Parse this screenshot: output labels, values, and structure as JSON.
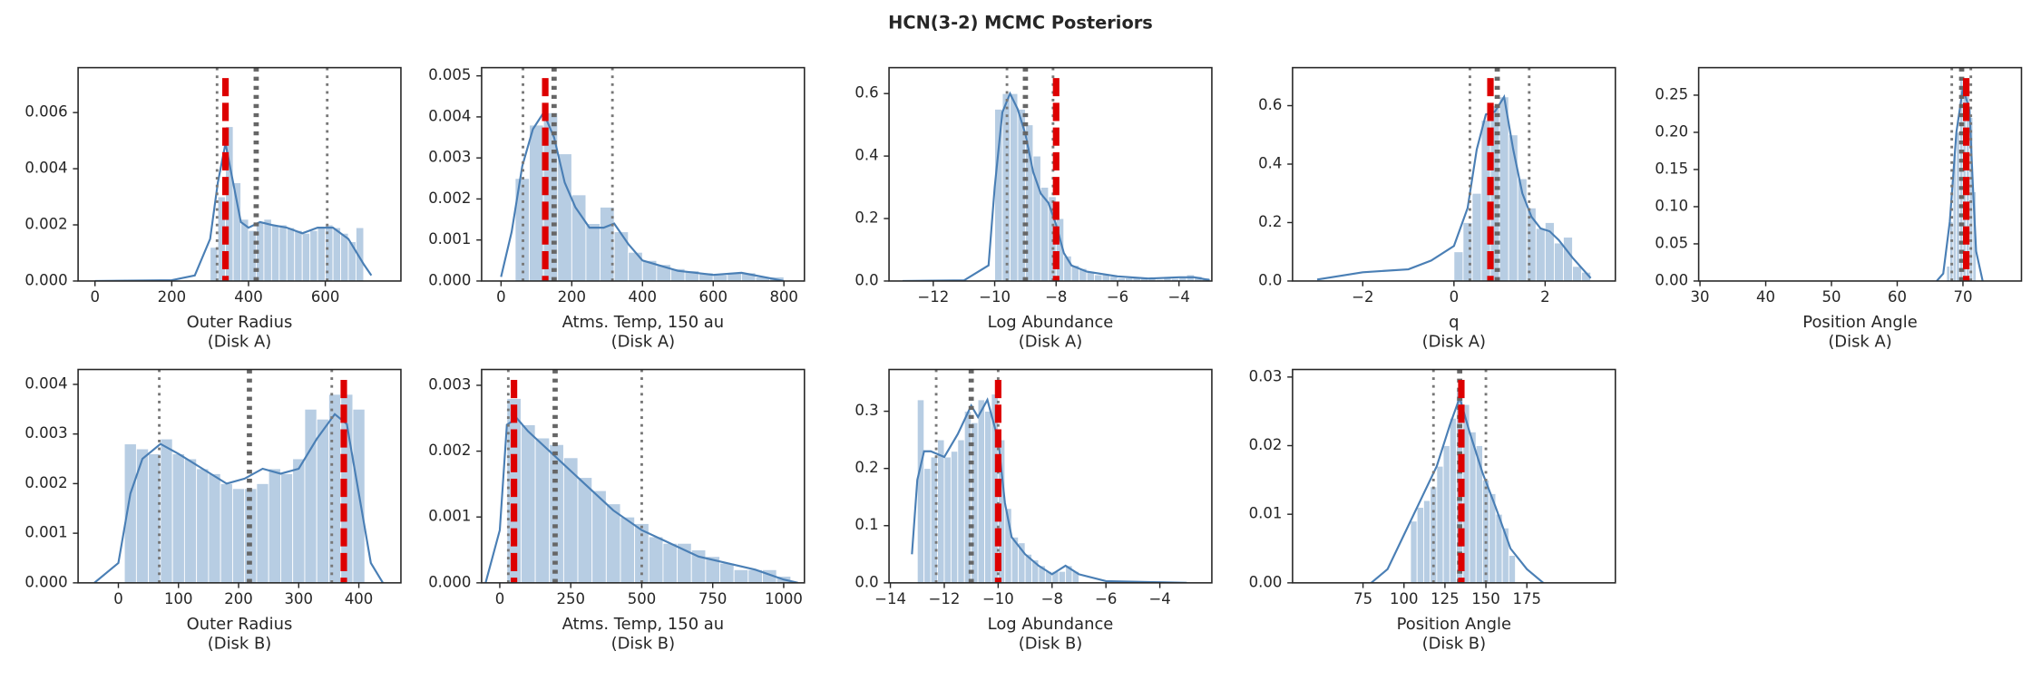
{
  "title": "HCN(3-2) MCMC Posteriors",
  "chart_data": [
    {
      "type": "histogram",
      "xlabel": [
        "Outer Radius",
        "(Disk A)"
      ],
      "xlim": [
        -44,
        797
      ],
      "ylim": [
        0,
        0.0076
      ],
      "xticks": [
        0,
        200,
        400,
        600
      ],
      "yticks": [
        {
          "value": 0,
          "label": "0.000"
        },
        {
          "value": 0.002,
          "label": "0.002"
        },
        {
          "value": 0.004,
          "label": "0.004"
        },
        {
          "value": 0.006,
          "label": "0.006"
        }
      ],
      "bins": [
        300,
        320,
        340,
        360,
        380,
        400,
        420,
        440,
        460,
        480,
        500,
        520,
        540,
        560,
        580,
        600,
        620,
        640,
        660,
        680,
        700
      ],
      "counts": [
        0.0012,
        0.003,
        0.0055,
        0.0035,
        0.0022,
        0.0018,
        0.0021,
        0.0022,
        0.002,
        0.002,
        0.0019,
        0.0018,
        0.0017,
        0.0018,
        0.0019,
        0.002,
        0.0019,
        0.0017,
        0.0014,
        0.0019
      ],
      "kde": {
        "x": [
          0,
          200,
          260,
          300,
          320,
          340,
          360,
          380,
          400,
          430,
          460,
          500,
          540,
          580,
          620,
          660,
          700,
          720
        ],
        "y": [
          0,
          3e-05,
          0.0002,
          0.0015,
          0.0035,
          0.0049,
          0.0035,
          0.0021,
          0.0019,
          0.0021,
          0.002,
          0.0019,
          0.0017,
          0.0019,
          0.0019,
          0.0015,
          0.0006,
          0.0002
        ]
      },
      "markers": {
        "percentiles": [
          318,
          605
        ],
        "median": 420,
        "best": 340
      }
    },
    {
      "type": "histogram",
      "xlabel": [
        "Atms. Temp, 150 au",
        "(Disk A)"
      ],
      "xlim": [
        -55,
        858
      ],
      "ylim": [
        0,
        0.0052
      ],
      "xticks": [
        0,
        200,
        400,
        600,
        800
      ],
      "yticks": [
        {
          "value": 0,
          "label": "0.000"
        },
        {
          "value": 0.001,
          "label": "0.001"
        },
        {
          "value": 0.002,
          "label": "0.002"
        },
        {
          "value": 0.003,
          "label": "0.003"
        },
        {
          "value": 0.004,
          "label": "0.004"
        },
        {
          "value": 0.005,
          "label": "0.005"
        }
      ],
      "bins": [
        40,
        80,
        120,
        160,
        200,
        240,
        280,
        320,
        360,
        400,
        440,
        480,
        520,
        560,
        600,
        640,
        680,
        720,
        760,
        800
      ],
      "counts": [
        0.0025,
        0.0038,
        0.0041,
        0.0031,
        0.0021,
        0.0014,
        0.0018,
        0.0012,
        0.0007,
        0.0005,
        0.0004,
        0.0003,
        0.00025,
        0.0002,
        0.00015,
        0.0002,
        0.0002,
        0.0001,
        0.0001
      ],
      "kde": {
        "x": [
          0,
          30,
          60,
          90,
          120,
          150,
          180,
          210,
          250,
          290,
          320,
          360,
          400,
          500,
          600,
          680,
          760,
          800
        ],
        "y": [
          0.0001,
          0.0012,
          0.0028,
          0.0037,
          0.0041,
          0.0035,
          0.0024,
          0.0018,
          0.0013,
          0.0013,
          0.0014,
          0.0009,
          0.0005,
          0.00025,
          0.00015,
          0.0002,
          7e-05,
          0
        ]
      },
      "markers": {
        "percentiles": [
          62,
          315
        ],
        "median": 150,
        "best": 125
      }
    },
    {
      "type": "histogram",
      "xlabel": [
        "Log Abundance",
        "(Disk A)"
      ],
      "xlim": [
        -13.44,
        -2.93
      ],
      "ylim": [
        0,
        0.683
      ],
      "xticks": [
        {
          "value": -12,
          "label": "−12"
        },
        {
          "value": -10,
          "label": "−10"
        },
        {
          "value": -8,
          "label": "−8"
        },
        {
          "value": -6,
          "label": "−6"
        },
        {
          "value": -4,
          "label": "−4"
        }
      ],
      "yticks": [
        {
          "value": 0,
          "label": "0.0"
        },
        {
          "value": 0.2,
          "label": "0.2"
        },
        {
          "value": 0.4,
          "label": "0.4"
        },
        {
          "value": 0.6,
          "label": "0.6"
        }
      ],
      "bins": [
        -10,
        -9.75,
        -9.5,
        -9.25,
        -9,
        -8.75,
        -8.5,
        -8.25,
        -8,
        -7.75,
        -7.5,
        -7.25,
        -7,
        -6.75,
        -6.5,
        -6.25,
        -6,
        -5.75,
        -5.5,
        -5.25,
        -5,
        -4.75,
        -4.5,
        -4.25,
        -4,
        -3.75,
        -3.5,
        -3.25,
        -3
      ],
      "counts": [
        0.55,
        0.6,
        0.6,
        0.55,
        0.5,
        0.4,
        0.3,
        0.27,
        0.2,
        0.08,
        0.05,
        0.04,
        0.03,
        0.02,
        0.02,
        0.015,
        0.01,
        0.01,
        0.01,
        0.01,
        0.008,
        0.005,
        0.01,
        0.008,
        0.01,
        0.02,
        0.015,
        0.01
      ],
      "kde": {
        "x": [
          -13,
          -11,
          -10.2,
          -10,
          -9.75,
          -9.5,
          -9.25,
          -9,
          -8.75,
          -8.5,
          -8.25,
          -8,
          -7.75,
          -7.5,
          -7,
          -6,
          -5,
          -4,
          -3.5,
          -3
        ],
        "y": [
          0,
          0.002,
          0.05,
          0.3,
          0.54,
          0.6,
          0.55,
          0.47,
          0.35,
          0.28,
          0.25,
          0.18,
          0.09,
          0.05,
          0.03,
          0.015,
          0.008,
          0.012,
          0.012,
          0.003
        ]
      },
      "markers": {
        "percentiles": [
          -9.6,
          -8.1
        ],
        "median": -9.0,
        "best": -8.0
      }
    },
    {
      "type": "histogram",
      "xlabel": [
        "q",
        "(Disk A)"
      ],
      "xlim": [
        -3.54,
        3.54
      ],
      "ylim": [
        0,
        0.73
      ],
      "xticks": [
        {
          "value": -2,
          "label": "−2"
        },
        0,
        2
      ],
      "yticks": [
        {
          "value": 0,
          "label": "0.0"
        },
        {
          "value": 0.2,
          "label": "0.2"
        },
        {
          "value": 0.4,
          "label": "0.4"
        },
        {
          "value": 0.6,
          "label": "0.6"
        }
      ],
      "bins": [
        0,
        0.2,
        0.4,
        0.6,
        0.8,
        1.0,
        1.2,
        1.4,
        1.6,
        1.8,
        2.0,
        2.2,
        2.4,
        2.6,
        2.8,
        3.0
      ],
      "counts": [
        0.1,
        0.2,
        0.3,
        0.55,
        0.6,
        0.63,
        0.5,
        0.35,
        0.25,
        0.18,
        0.2,
        0.13,
        0.15,
        0.05,
        0.03
      ],
      "kde": {
        "x": [
          -3,
          -2,
          -1,
          -0.5,
          0,
          0.3,
          0.5,
          0.7,
          0.9,
          1.1,
          1.3,
          1.5,
          1.7,
          1.9,
          2.1,
          2.3,
          2.6,
          3
        ],
        "y": [
          0.005,
          0.03,
          0.04,
          0.07,
          0.12,
          0.25,
          0.45,
          0.57,
          0.58,
          0.63,
          0.45,
          0.3,
          0.22,
          0.18,
          0.17,
          0.14,
          0.08,
          0.01
        ]
      },
      "markers": {
        "percentiles": [
          0.35,
          1.65
        ],
        "median": 0.95,
        "best": 0.8
      }
    },
    {
      "type": "histogram",
      "xlabel": [
        "Position Angle",
        "(Disk A)"
      ],
      "xlim": [
        29.8,
        78.9
      ],
      "ylim": [
        0,
        0.287
      ],
      "xticks": [
        30,
        40,
        50,
        60,
        70
      ],
      "yticks": [
        {
          "value": 0,
          "label": "0.00"
        },
        {
          "value": 0.05,
          "label": "0.05"
        },
        {
          "value": 0.1,
          "label": "0.10"
        },
        {
          "value": 0.15,
          "label": "0.15"
        },
        {
          "value": 0.2,
          "label": "0.20"
        },
        {
          "value": 0.25,
          "label": "0.25"
        }
      ],
      "bins": [
        67.5,
        68,
        68.5,
        69,
        69.5,
        70,
        70.5,
        71,
        71.5,
        72
      ],
      "counts": [
        0.02,
        0.08,
        0.17,
        0.2,
        0.27,
        0.26,
        0.25,
        0.22,
        0.12
      ],
      "kde": {
        "x": [
          66,
          67,
          68,
          69,
          70,
          71,
          71.5,
          72,
          73
        ],
        "y": [
          0,
          0.01,
          0.08,
          0.2,
          0.26,
          0.23,
          0.13,
          0.04,
          0
        ]
      },
      "markers": {
        "percentiles": [
          68.3,
          71.2
        ],
        "median": 69.8,
        "best": 70.5
      }
    },
    {
      "type": "histogram",
      "xlabel": [
        "Outer Radius",
        "(Disk B)"
      ],
      "xlim": [
        -67,
        470
      ],
      "ylim": [
        0,
        0.0043
      ],
      "xticks": [
        0,
        100,
        200,
        300,
        400
      ],
      "yticks": [
        {
          "value": 0,
          "label": "0.000"
        },
        {
          "value": 0.001,
          "label": "0.001"
        },
        {
          "value": 0.002,
          "label": "0.002"
        },
        {
          "value": 0.003,
          "label": "0.003"
        },
        {
          "value": 0.004,
          "label": "0.004"
        }
      ],
      "bins": [
        10,
        30,
        50,
        70,
        90,
        110,
        130,
        150,
        170,
        190,
        210,
        230,
        250,
        270,
        290,
        310,
        330,
        350,
        370,
        390,
        410
      ],
      "counts": [
        0.0028,
        0.0027,
        0.0026,
        0.0029,
        0.0026,
        0.0025,
        0.0023,
        0.0022,
        0.002,
        0.0019,
        0.0019,
        0.002,
        0.0023,
        0.0022,
        0.0025,
        0.0035,
        0.0033,
        0.0038,
        0.0038,
        0.0035
      ],
      "kde": {
        "x": [
          -40,
          0,
          20,
          40,
          70,
          100,
          140,
          180,
          210,
          240,
          270,
          300,
          330,
          360,
          380,
          400,
          420,
          440
        ],
        "y": [
          0,
          0.0004,
          0.0018,
          0.0025,
          0.0028,
          0.0026,
          0.0023,
          0.002,
          0.0021,
          0.0023,
          0.0022,
          0.0023,
          0.0029,
          0.0034,
          0.0032,
          0.0018,
          0.0004,
          0
        ]
      },
      "markers": {
        "percentiles": [
          68,
          355
        ],
        "median": 218,
        "best": 375
      }
    },
    {
      "type": "histogram",
      "xlabel": [
        "Atms. Temp, 150 au",
        "(Disk B)"
      ],
      "xlim": [
        -64,
        1073
      ],
      "ylim": [
        0,
        0.00324
      ],
      "xticks": [
        0,
        250,
        500,
        750,
        1000
      ],
      "yticks": [
        {
          "value": 0,
          "label": "0.000"
        },
        {
          "value": 0.001,
          "label": "0.001"
        },
        {
          "value": 0.002,
          "label": "0.002"
        },
        {
          "value": 0.003,
          "label": "0.003"
        }
      ],
      "bins": [
        25,
        75,
        125,
        175,
        225,
        275,
        325,
        375,
        425,
        475,
        525,
        575,
        625,
        675,
        725,
        775,
        825,
        875,
        925,
        975,
        1025
      ],
      "counts": [
        0.0028,
        0.0024,
        0.0022,
        0.0021,
        0.0019,
        0.0016,
        0.0014,
        0.0012,
        0.001,
        0.0009,
        0.0007,
        0.0006,
        0.0006,
        0.0005,
        0.0004,
        0.0003,
        0.0002,
        0.0002,
        0.0002,
        0.0001
      ],
      "kde": {
        "x": [
          -50,
          0,
          25,
          60,
          100,
          200,
          300,
          400,
          500,
          600,
          700,
          800,
          900,
          1000,
          1050
        ],
        "y": [
          0,
          0.0008,
          0.0024,
          0.0025,
          0.0023,
          0.0019,
          0.0015,
          0.0011,
          0.0008,
          0.0006,
          0.0004,
          0.0003,
          0.0002,
          5e-05,
          0
        ]
      },
      "markers": {
        "percentiles": [
          30,
          500
        ],
        "median": 195,
        "best": 50
      }
    },
    {
      "type": "histogram",
      "xlabel": [
        "Log Abundance",
        "(Disk B)"
      ],
      "xlim": [
        -14.05,
        -2.07
      ],
      "ylim": [
        0,
        0.373
      ],
      "xticks": [
        {
          "value": -14,
          "label": "−14"
        },
        {
          "value": -12,
          "label": "−12"
        },
        {
          "value": -10,
          "label": "−10"
        },
        {
          "value": -8,
          "label": "−8"
        },
        {
          "value": -6,
          "label": "−6"
        },
        {
          "value": -4,
          "label": "−4"
        }
      ],
      "yticks": [
        {
          "value": 0,
          "label": "0.0"
        },
        {
          "value": 0.1,
          "label": "0.1"
        },
        {
          "value": 0.2,
          "label": "0.2"
        },
        {
          "value": 0.3,
          "label": "0.3"
        }
      ],
      "bins": [
        -13,
        -12.75,
        -12.5,
        -12.25,
        -12,
        -11.75,
        -11.5,
        -11.25,
        -11,
        -10.75,
        -10.5,
        -10.25,
        -10,
        -9.75,
        -9.5,
        -9.25,
        -9,
        -8.75,
        -8.5,
        -8.25,
        -8,
        -7.75,
        -7.5,
        -7.25,
        -7
      ],
      "counts": [
        0.32,
        0.2,
        0.22,
        0.25,
        0.22,
        0.23,
        0.25,
        0.3,
        0.28,
        0.32,
        0.3,
        0.33,
        0.25,
        0.13,
        0.08,
        0.07,
        0.05,
        0.04,
        0.03,
        0.02,
        0.02,
        0.02,
        0.03,
        0.02
      ],
      "kde": {
        "x": [
          -13.2,
          -13,
          -12.75,
          -12.5,
          -12,
          -11.5,
          -11,
          -10.75,
          -10.4,
          -10,
          -9.75,
          -9.5,
          -9,
          -8.5,
          -8,
          -7.5,
          -7,
          -6,
          -4,
          -3
        ],
        "y": [
          0.05,
          0.18,
          0.23,
          0.23,
          0.22,
          0.26,
          0.31,
          0.29,
          0.32,
          0.25,
          0.14,
          0.08,
          0.05,
          0.03,
          0.015,
          0.03,
          0.015,
          0.003,
          0.001,
          0
        ]
      },
      "markers": {
        "percentiles": [
          -12.3,
          -10.0
        ],
        "median": -11.0,
        "best": -10.0
      }
    },
    {
      "type": "histogram",
      "xlabel": [
        "Position Angle",
        "(Disk B)"
      ],
      "xlim": [
        32,
        229
      ],
      "ylim": [
        0,
        0.0311
      ],
      "xticks": [
        75,
        100,
        125,
        150,
        175
      ],
      "yticks": [
        {
          "value": 0,
          "label": "0.00"
        },
        {
          "value": 0.01,
          "label": "0.01"
        },
        {
          "value": 0.02,
          "label": "0.02"
        },
        {
          "value": 0.03,
          "label": "0.03"
        }
      ],
      "bins": [
        104,
        108,
        112,
        116,
        120,
        124,
        128,
        132,
        136,
        140,
        144,
        148,
        152,
        156,
        160,
        164,
        168
      ],
      "counts": [
        0.009,
        0.011,
        0.012,
        0.014,
        0.017,
        0.02,
        0.024,
        0.028,
        0.026,
        0.022,
        0.02,
        0.015,
        0.013,
        0.01,
        0.008,
        0.004
      ],
      "kde": {
        "x": [
          80,
          90,
          100,
          110,
          120,
          128,
          134,
          140,
          148,
          156,
          165,
          175,
          185
        ],
        "y": [
          0,
          0.002,
          0.007,
          0.012,
          0.017,
          0.023,
          0.027,
          0.022,
          0.016,
          0.011,
          0.005,
          0.002,
          0
        ]
      },
      "markers": {
        "percentiles": [
          118,
          150
        ],
        "median": 134,
        "best": 135
      }
    }
  ]
}
